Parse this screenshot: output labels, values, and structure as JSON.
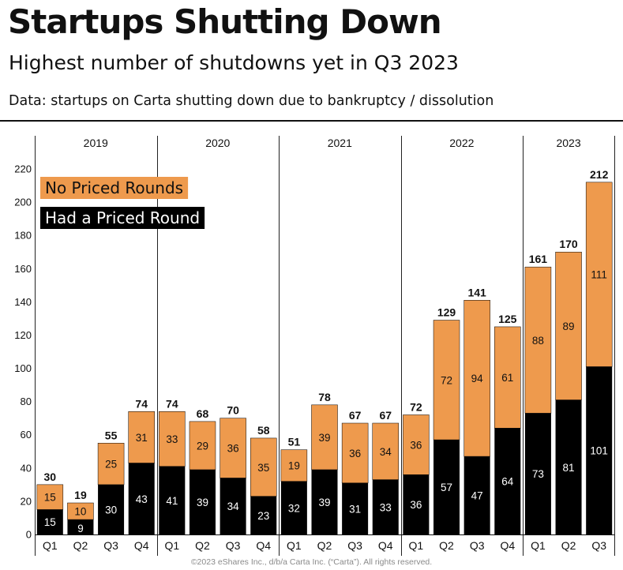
{
  "header": {
    "title": "Startups Shutting Down",
    "subtitle": "Highest number of shutdowns yet in Q3 2023",
    "source": "Data: startups on Carta shutting down due to bankruptcy / dissolution"
  },
  "footer": {
    "copyright": "©2023 eShares Inc., d/b/a Carta Inc. (“Carta”). All rights reserved."
  },
  "chart_data": {
    "type": "bar",
    "stacked": true,
    "years": [
      "2019",
      "2020",
      "2021",
      "2022",
      "2023"
    ],
    "categories": [
      {
        "year": "2019",
        "quarter": "Q1"
      },
      {
        "year": "2019",
        "quarter": "Q2"
      },
      {
        "year": "2019",
        "quarter": "Q3"
      },
      {
        "year": "2019",
        "quarter": "Q4"
      },
      {
        "year": "2020",
        "quarter": "Q1"
      },
      {
        "year": "2020",
        "quarter": "Q2"
      },
      {
        "year": "2020",
        "quarter": "Q3"
      },
      {
        "year": "2020",
        "quarter": "Q4"
      },
      {
        "year": "2021",
        "quarter": "Q1"
      },
      {
        "year": "2021",
        "quarter": "Q2"
      },
      {
        "year": "2021",
        "quarter": "Q3"
      },
      {
        "year": "2021",
        "quarter": "Q4"
      },
      {
        "year": "2022",
        "quarter": "Q1"
      },
      {
        "year": "2022",
        "quarter": "Q2"
      },
      {
        "year": "2022",
        "quarter": "Q3"
      },
      {
        "year": "2022",
        "quarter": "Q4"
      },
      {
        "year": "2023",
        "quarter": "Q1"
      },
      {
        "year": "2023",
        "quarter": "Q2"
      },
      {
        "year": "2023",
        "quarter": "Q3"
      }
    ],
    "series": [
      {
        "name": "Had a Priced Round",
        "color": "#000000",
        "values": [
          15,
          9,
          30,
          43,
          41,
          39,
          34,
          23,
          32,
          39,
          31,
          33,
          36,
          57,
          47,
          64,
          73,
          81,
          101
        ]
      },
      {
        "name": "No Priced Rounds",
        "color": "#EE9A4D",
        "values": [
          15,
          10,
          25,
          31,
          33,
          29,
          36,
          35,
          19,
          39,
          36,
          34,
          36,
          72,
          94,
          61,
          88,
          89,
          111
        ]
      }
    ],
    "totals": [
      30,
      19,
      55,
      74,
      74,
      68,
      70,
      58,
      51,
      78,
      67,
      67,
      72,
      129,
      141,
      125,
      161,
      170,
      212
    ],
    "ylim": [
      0,
      220
    ],
    "yticks": [
      0,
      20,
      40,
      60,
      80,
      100,
      120,
      140,
      160,
      180,
      200,
      220
    ],
    "legend": "top-left",
    "grid": false
  }
}
